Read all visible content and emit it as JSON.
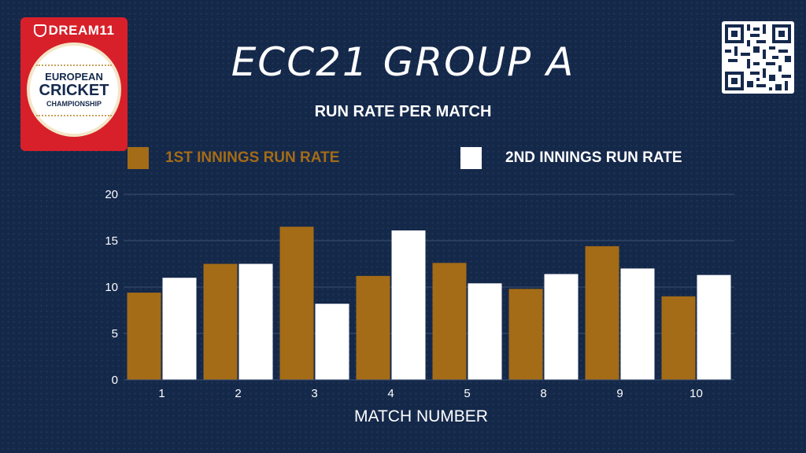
{
  "logo": {
    "brand": "DREAM11",
    "line1": "EUROPEAN",
    "line2": "CRICKET",
    "line3": "CHAMPIONSHIP"
  },
  "title": "ECC21 GROUP A",
  "qr_code": "qr-code",
  "colors": {
    "background": "#14284a",
    "series1": "#a46c16",
    "series2": "#ffffff",
    "grid": "#3b4f72"
  },
  "chart_data": {
    "type": "bar",
    "title": "RUN RATE PER MATCH",
    "xlabel": "MATCH NUMBER",
    "ylabel": "",
    "categories": [
      "1",
      "2",
      "3",
      "4",
      "5",
      "8",
      "9",
      "10"
    ],
    "ylim": [
      0,
      20
    ],
    "yticks": [
      0,
      5,
      10,
      15,
      20
    ],
    "grid": "horizontal",
    "legend_position": "top",
    "series": [
      {
        "name": "1ST INNINGS RUN RATE",
        "color": "#a46c16",
        "values": [
          9.4,
          12.5,
          16.5,
          11.2,
          12.6,
          9.8,
          14.4,
          9.0
        ]
      },
      {
        "name": "2ND INNINGS RUN RATE",
        "color": "#ffffff",
        "values": [
          11.0,
          12.5,
          8.2,
          16.1,
          10.4,
          11.4,
          12.0,
          11.3
        ]
      }
    ]
  }
}
